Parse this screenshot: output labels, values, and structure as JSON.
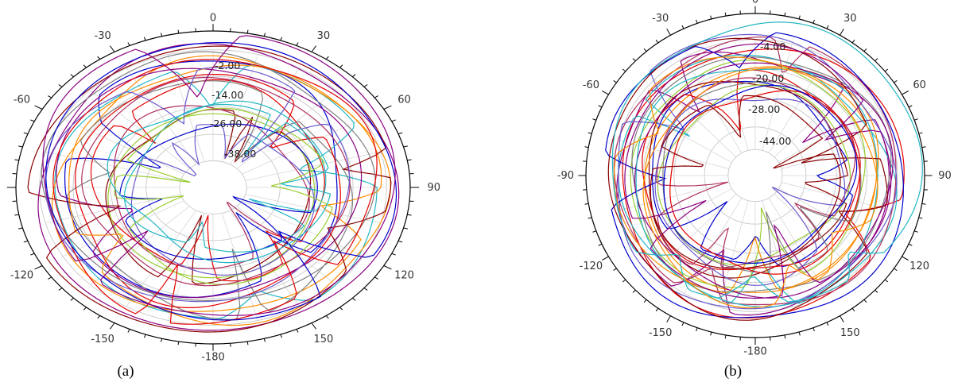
{
  "palette": [
    "#e60000",
    "#0000cc",
    "#8b0080",
    "#22b6c4",
    "#ff8c00",
    "#8b0000",
    "#9acd32",
    "#808080",
    "#b03060",
    "#6a5acd"
  ],
  "chart_data": [
    {
      "type": "polar-line",
      "caption": "(a)",
      "angle_ticks": [
        0,
        30,
        60,
        90,
        120,
        150,
        -180,
        -150,
        -120,
        -90,
        -60,
        -30
      ],
      "radial_labels": [
        "-2.00",
        "-14.00",
        "-26.00",
        "-38.00"
      ],
      "radial_range": [
        -50,
        4
      ],
      "series_count": 24
    },
    {
      "type": "polar-line",
      "caption": "(b)",
      "angle_ticks": [
        0,
        30,
        60,
        90,
        120,
        150,
        -180,
        -150,
        -120,
        -90,
        -60,
        -30
      ],
      "radial_labels": [
        "-4.00",
        "-20.00",
        "-28.00",
        "-44.00"
      ],
      "radial_range": [
        -60,
        4
      ],
      "series_count": 26
    }
  ]
}
